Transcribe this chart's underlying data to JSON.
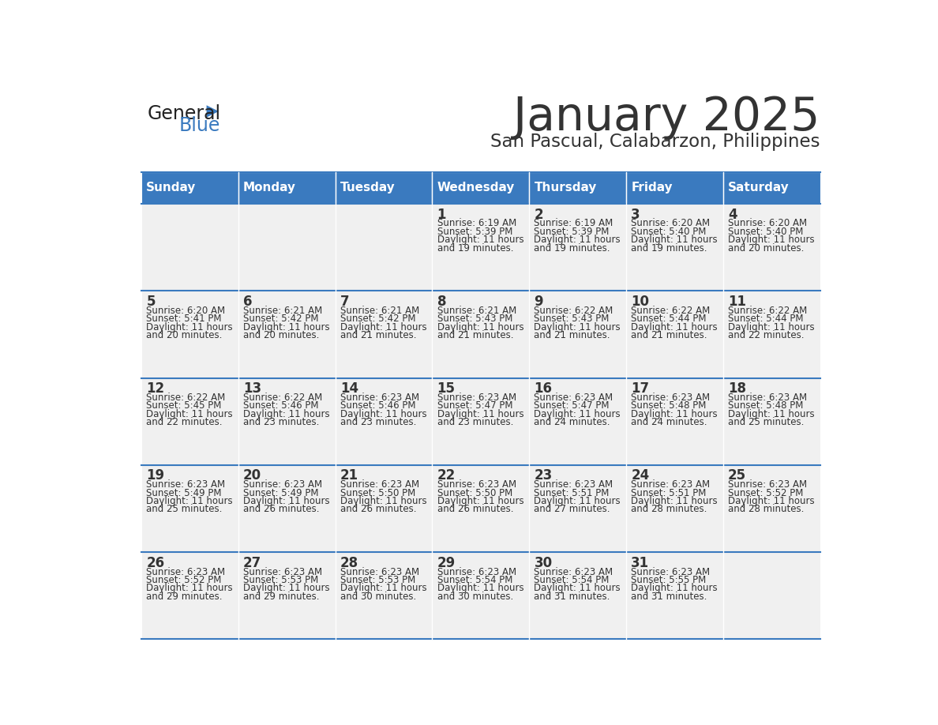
{
  "title": "January 2025",
  "subtitle": "San Pascual, Calabarzon, Philippines",
  "header_bg": "#3a7abf",
  "header_text": "#ffffff",
  "cell_bg": "#f0f0f0",
  "border_color": "#3a7abf",
  "text_color": "#333333",
  "days_of_week": [
    "Sunday",
    "Monday",
    "Tuesday",
    "Wednesday",
    "Thursday",
    "Friday",
    "Saturday"
  ],
  "calendar": [
    [
      {
        "day": "",
        "sunrise": "",
        "sunset": "",
        "daylight": ""
      },
      {
        "day": "",
        "sunrise": "",
        "sunset": "",
        "daylight": ""
      },
      {
        "day": "",
        "sunrise": "",
        "sunset": "",
        "daylight": ""
      },
      {
        "day": "1",
        "sunrise": "6:19 AM",
        "sunset": "5:39 PM",
        "daylight": "11 hours\nand 19 minutes."
      },
      {
        "day": "2",
        "sunrise": "6:19 AM",
        "sunset": "5:39 PM",
        "daylight": "11 hours\nand 19 minutes."
      },
      {
        "day": "3",
        "sunrise": "6:20 AM",
        "sunset": "5:40 PM",
        "daylight": "11 hours\nand 19 minutes."
      },
      {
        "day": "4",
        "sunrise": "6:20 AM",
        "sunset": "5:40 PM",
        "daylight": "11 hours\nand 20 minutes."
      }
    ],
    [
      {
        "day": "5",
        "sunrise": "6:20 AM",
        "sunset": "5:41 PM",
        "daylight": "11 hours\nand 20 minutes."
      },
      {
        "day": "6",
        "sunrise": "6:21 AM",
        "sunset": "5:42 PM",
        "daylight": "11 hours\nand 20 minutes."
      },
      {
        "day": "7",
        "sunrise": "6:21 AM",
        "sunset": "5:42 PM",
        "daylight": "11 hours\nand 21 minutes."
      },
      {
        "day": "8",
        "sunrise": "6:21 AM",
        "sunset": "5:43 PM",
        "daylight": "11 hours\nand 21 minutes."
      },
      {
        "day": "9",
        "sunrise": "6:22 AM",
        "sunset": "5:43 PM",
        "daylight": "11 hours\nand 21 minutes."
      },
      {
        "day": "10",
        "sunrise": "6:22 AM",
        "sunset": "5:44 PM",
        "daylight": "11 hours\nand 21 minutes."
      },
      {
        "day": "11",
        "sunrise": "6:22 AM",
        "sunset": "5:44 PM",
        "daylight": "11 hours\nand 22 minutes."
      }
    ],
    [
      {
        "day": "12",
        "sunrise": "6:22 AM",
        "sunset": "5:45 PM",
        "daylight": "11 hours\nand 22 minutes."
      },
      {
        "day": "13",
        "sunrise": "6:22 AM",
        "sunset": "5:46 PM",
        "daylight": "11 hours\nand 23 minutes."
      },
      {
        "day": "14",
        "sunrise": "6:23 AM",
        "sunset": "5:46 PM",
        "daylight": "11 hours\nand 23 minutes."
      },
      {
        "day": "15",
        "sunrise": "6:23 AM",
        "sunset": "5:47 PM",
        "daylight": "11 hours\nand 23 minutes."
      },
      {
        "day": "16",
        "sunrise": "6:23 AM",
        "sunset": "5:47 PM",
        "daylight": "11 hours\nand 24 minutes."
      },
      {
        "day": "17",
        "sunrise": "6:23 AM",
        "sunset": "5:48 PM",
        "daylight": "11 hours\nand 24 minutes."
      },
      {
        "day": "18",
        "sunrise": "6:23 AM",
        "sunset": "5:48 PM",
        "daylight": "11 hours\nand 25 minutes."
      }
    ],
    [
      {
        "day": "19",
        "sunrise": "6:23 AM",
        "sunset": "5:49 PM",
        "daylight": "11 hours\nand 25 minutes."
      },
      {
        "day": "20",
        "sunrise": "6:23 AM",
        "sunset": "5:49 PM",
        "daylight": "11 hours\nand 26 minutes."
      },
      {
        "day": "21",
        "sunrise": "6:23 AM",
        "sunset": "5:50 PM",
        "daylight": "11 hours\nand 26 minutes."
      },
      {
        "day": "22",
        "sunrise": "6:23 AM",
        "sunset": "5:50 PM",
        "daylight": "11 hours\nand 26 minutes."
      },
      {
        "day": "23",
        "sunrise": "6:23 AM",
        "sunset": "5:51 PM",
        "daylight": "11 hours\nand 27 minutes."
      },
      {
        "day": "24",
        "sunrise": "6:23 AM",
        "sunset": "5:51 PM",
        "daylight": "11 hours\nand 28 minutes."
      },
      {
        "day": "25",
        "sunrise": "6:23 AM",
        "sunset": "5:52 PM",
        "daylight": "11 hours\nand 28 minutes."
      }
    ],
    [
      {
        "day": "26",
        "sunrise": "6:23 AM",
        "sunset": "5:52 PM",
        "daylight": "11 hours\nand 29 minutes."
      },
      {
        "day": "27",
        "sunrise": "6:23 AM",
        "sunset": "5:53 PM",
        "daylight": "11 hours\nand 29 minutes."
      },
      {
        "day": "28",
        "sunrise": "6:23 AM",
        "sunset": "5:53 PM",
        "daylight": "11 hours\nand 30 minutes."
      },
      {
        "day": "29",
        "sunrise": "6:23 AM",
        "sunset": "5:54 PM",
        "daylight": "11 hours\nand 30 minutes."
      },
      {
        "day": "30",
        "sunrise": "6:23 AM",
        "sunset": "5:54 PM",
        "daylight": "11 hours\nand 31 minutes."
      },
      {
        "day": "31",
        "sunrise": "6:23 AM",
        "sunset": "5:55 PM",
        "daylight": "11 hours\nand 31 minutes."
      },
      {
        "day": "",
        "sunrise": "",
        "sunset": "",
        "daylight": ""
      }
    ]
  ]
}
